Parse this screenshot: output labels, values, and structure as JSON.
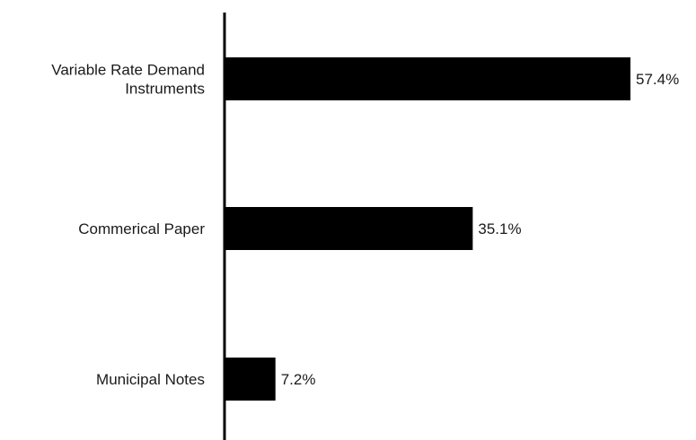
{
  "chart_data": {
    "type": "bar",
    "orientation": "horizontal",
    "categories": [
      [
        "Variable Rate Demand",
        "Instruments"
      ],
      [
        "Commerical Paper"
      ],
      [
        "Municipal Notes"
      ]
    ],
    "values": [
      57.4,
      35.1,
      7.2
    ],
    "data_labels": [
      "57.4%",
      "35.1%",
      "7.2%"
    ],
    "title": "",
    "xlabel": "",
    "ylabel": "",
    "xlim": [
      0,
      57.4
    ],
    "grid": false,
    "legend": "none",
    "colors": {
      "bar": "#000000",
      "axis": "#000000",
      "text": "#1a1a1a"
    }
  }
}
